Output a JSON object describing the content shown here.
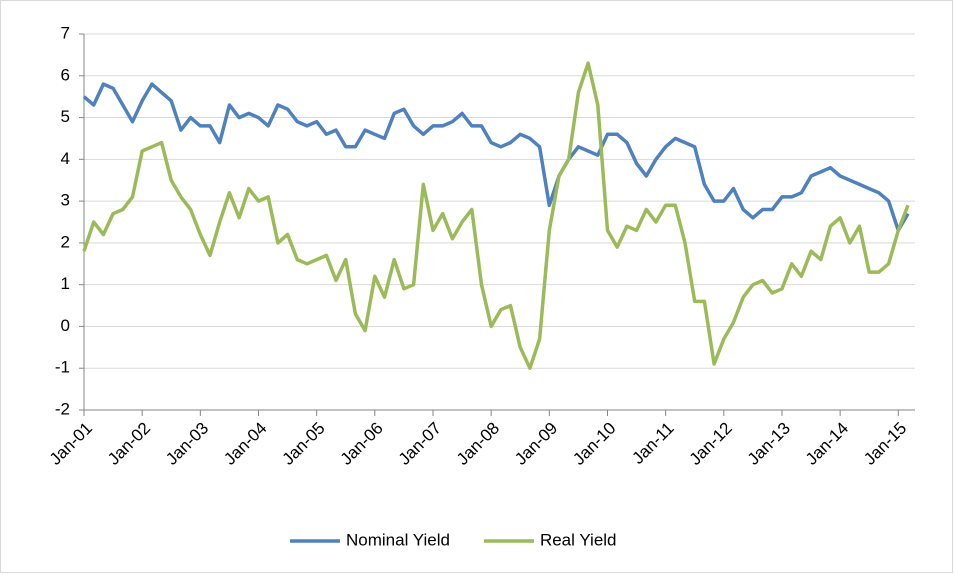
{
  "chart_data": {
    "type": "line",
    "categories": [
      "Jan-01",
      null,
      null,
      null,
      null,
      null,
      "Jan-02",
      null,
      null,
      null,
      null,
      null,
      "Jan-03",
      null,
      null,
      null,
      null,
      null,
      "Jan-04",
      null,
      null,
      null,
      null,
      null,
      "Jan-05",
      null,
      null,
      null,
      null,
      null,
      "Jan-06",
      null,
      null,
      null,
      null,
      null,
      "Jan-07",
      null,
      null,
      null,
      null,
      null,
      "Jan-08",
      null,
      null,
      null,
      null,
      null,
      "Jan-09",
      null,
      null,
      null,
      null,
      null,
      "Jan-10",
      null,
      null,
      null,
      null,
      null,
      "Jan-11",
      null,
      null,
      null,
      null,
      null,
      "Jan-12",
      null,
      null,
      null,
      null,
      null,
      "Jan-13",
      null,
      null,
      null,
      null,
      null,
      "Jan-14",
      null,
      null,
      null,
      null,
      null,
      "Jan-15",
      null
    ],
    "series": [
      {
        "name": "Nominal Yield",
        "color": "#4f81bd",
        "values": [
          5.5,
          5.3,
          5.8,
          5.7,
          5.3,
          4.9,
          5.4,
          5.8,
          5.6,
          5.4,
          4.7,
          5.0,
          4.8,
          4.8,
          4.4,
          5.3,
          5.0,
          5.1,
          5.0,
          4.8,
          5.3,
          5.2,
          4.9,
          4.8,
          4.9,
          4.6,
          4.7,
          4.3,
          4.3,
          4.7,
          4.6,
          4.5,
          5.1,
          5.2,
          4.8,
          4.6,
          4.8,
          4.8,
          4.9,
          5.1,
          4.8,
          4.8,
          4.4,
          4.3,
          4.4,
          4.6,
          4.5,
          4.3,
          2.9,
          3.6,
          4.0,
          4.3,
          4.2,
          4.1,
          4.6,
          4.6,
          4.4,
          3.9,
          3.6,
          4.0,
          4.3,
          4.5,
          4.4,
          4.3,
          3.4,
          3.0,
          3.0,
          3.3,
          2.8,
          2.6,
          2.8,
          2.8,
          3.1,
          3.1,
          3.2,
          3.6,
          3.7,
          3.8,
          3.6,
          3.5,
          3.4,
          3.3,
          3.2,
          3.0,
          2.3,
          2.7
        ]
      },
      {
        "name": "Real Yield",
        "color": "#9bbb59",
        "values": [
          1.8,
          2.5,
          2.2,
          2.7,
          2.8,
          3.1,
          4.2,
          4.3,
          4.4,
          3.5,
          3.1,
          2.8,
          2.2,
          1.7,
          2.5,
          3.2,
          2.6,
          3.3,
          3.0,
          3.1,
          2.0,
          2.2,
          1.6,
          1.5,
          1.6,
          1.7,
          1.1,
          1.6,
          0.3,
          -0.1,
          1.2,
          0.7,
          1.6,
          0.9,
          1.0,
          3.4,
          2.3,
          2.7,
          2.1,
          2.5,
          2.8,
          1.0,
          0.0,
          0.4,
          0.5,
          -0.5,
          -1.0,
          -0.3,
          2.3,
          3.6,
          4.0,
          5.6,
          6.3,
          5.3,
          2.3,
          1.9,
          2.4,
          2.3,
          2.8,
          2.5,
          2.9,
          2.9,
          2.0,
          0.6,
          0.6,
          -0.9,
          -0.3,
          0.1,
          0.7,
          1.0,
          1.1,
          0.8,
          0.9,
          1.5,
          1.2,
          1.8,
          1.6,
          2.4,
          2.6,
          2.0,
          2.4,
          1.3,
          1.3,
          1.5,
          2.3,
          2.9
        ]
      }
    ],
    "ylim": [
      -2,
      7
    ],
    "yticks": [
      -2,
      -1,
      0,
      1,
      2,
      3,
      4,
      5,
      6,
      7
    ],
    "grid": true,
    "legend": "bottom"
  }
}
